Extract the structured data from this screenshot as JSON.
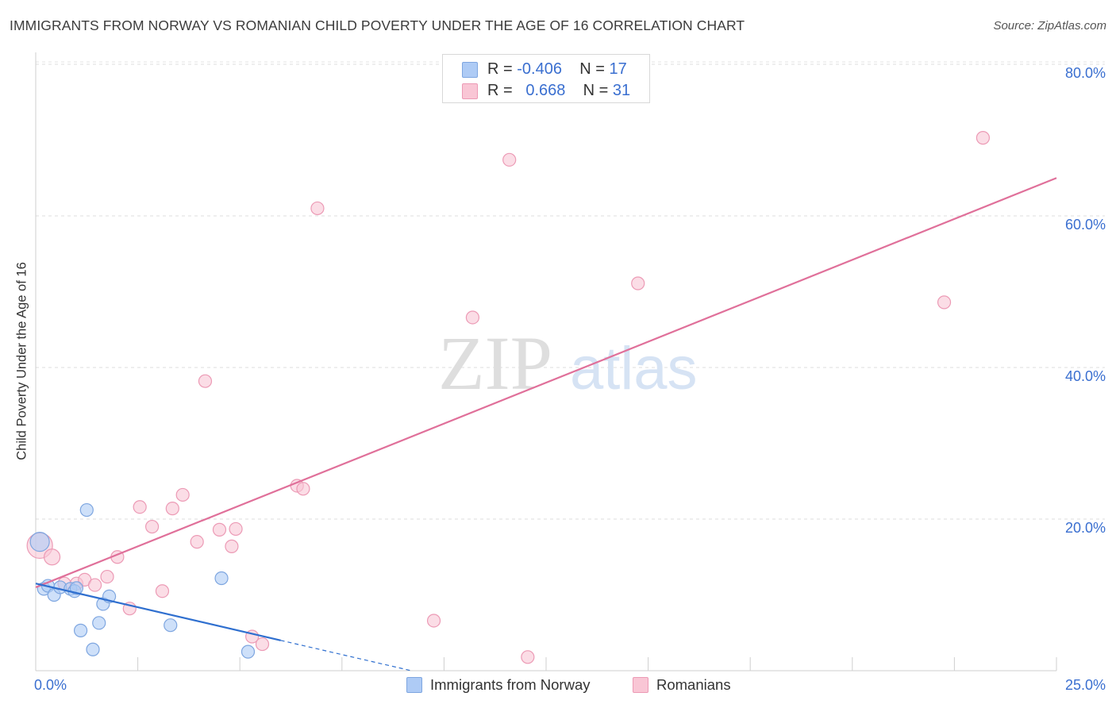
{
  "title": "IMMIGRANTS FROM NORWAY VS ROMANIAN CHILD POVERTY UNDER THE AGE OF 16 CORRELATION CHART",
  "source": "Source: ZipAtlas.com",
  "watermark": {
    "zip": "ZIP",
    "atlas": "atlas"
  },
  "legend": {
    "rows": [
      {
        "r_label": "R =",
        "r_value": "-0.406",
        "n_label": "N =",
        "n_value": "17",
        "color": "#aecbf5",
        "border": "#7ea6e0"
      },
      {
        "r_label": "R =",
        "r_value": "0.668",
        "n_label": "N =",
        "n_value": "31",
        "color": "#f9c6d5",
        "border": "#ec9ab5"
      }
    ]
  },
  "bottom_legend": [
    {
      "label": "Immigrants from Norway",
      "color": "#aecbf5",
      "border": "#7ea6e0"
    },
    {
      "label": "Romanians",
      "color": "#f9c6d5",
      "border": "#ec9ab5"
    }
  ],
  "chart_data": {
    "type": "scatter",
    "title": "IMMIGRANTS FROM NORWAY VS ROMANIAN CHILD POVERTY UNDER THE AGE OF 16 CORRELATION CHART",
    "xlabel": "",
    "ylabel": "Child Poverty Under the Age of 16",
    "xlim": [
      0,
      25
    ],
    "ylim": [
      0,
      80
    ],
    "x_tick_labels": [
      "0.0%",
      "25.0%"
    ],
    "y_ticks": [
      20,
      40,
      60,
      80
    ],
    "y_tick_labels": [
      "20.0%",
      "40.0%",
      "60.0%",
      "80.0%"
    ],
    "grid": true,
    "series": [
      {
        "name": "Immigrants from Norway",
        "color": "#7ea6e0",
        "fill": "#aecbf5",
        "line_color": "#2f6fcf",
        "trend": {
          "x0": 0,
          "y0": 11.5,
          "x1": 6.0,
          "y1": 4.0,
          "dash_to_x": 9.2
        },
        "points": [
          {
            "x": 0.1,
            "y": 17.0,
            "size": "large"
          },
          {
            "x": 0.2,
            "y": 10.8,
            "size": "normal"
          },
          {
            "x": 0.3,
            "y": 11.2,
            "size": "normal"
          },
          {
            "x": 0.45,
            "y": 10.0,
            "size": "normal"
          },
          {
            "x": 0.6,
            "y": 11.0,
            "size": "normal"
          },
          {
            "x": 0.85,
            "y": 10.8,
            "size": "normal"
          },
          {
            "x": 0.95,
            "y": 10.5,
            "size": "normal"
          },
          {
            "x": 1.1,
            "y": 5.3,
            "size": "normal"
          },
          {
            "x": 1.25,
            "y": 21.2,
            "size": "normal"
          },
          {
            "x": 1.4,
            "y": 2.8,
            "size": "normal"
          },
          {
            "x": 1.55,
            "y": 6.3,
            "size": "normal"
          },
          {
            "x": 1.65,
            "y": 8.8,
            "size": "normal"
          },
          {
            "x": 1.8,
            "y": 9.8,
            "size": "normal"
          },
          {
            "x": 3.3,
            "y": 6.0,
            "size": "normal"
          },
          {
            "x": 4.55,
            "y": 12.2,
            "size": "normal"
          },
          {
            "x": 5.2,
            "y": 2.5,
            "size": "normal"
          },
          {
            "x": 1.0,
            "y": 10.9,
            "size": "normal"
          }
        ]
      },
      {
        "name": "Romanians",
        "color": "#ec9ab5",
        "fill": "#f9c6d5",
        "line_color": "#e0709a",
        "trend": {
          "x0": 0,
          "y0": 11.0,
          "x1": 25.0,
          "y1": 65.0
        },
        "points": [
          {
            "x": 0.1,
            "y": 16.5,
            "size": "xlarge"
          },
          {
            "x": 0.4,
            "y": 15.0,
            "size": "medium"
          },
          {
            "x": 0.7,
            "y": 11.5,
            "size": "normal"
          },
          {
            "x": 1.0,
            "y": 11.5,
            "size": "normal"
          },
          {
            "x": 1.2,
            "y": 12.0,
            "size": "normal"
          },
          {
            "x": 1.45,
            "y": 11.3,
            "size": "normal"
          },
          {
            "x": 1.75,
            "y": 12.4,
            "size": "normal"
          },
          {
            "x": 2.0,
            "y": 15.0,
            "size": "normal"
          },
          {
            "x": 2.3,
            "y": 8.2,
            "size": "normal"
          },
          {
            "x": 2.55,
            "y": 21.6,
            "size": "normal"
          },
          {
            "x": 2.85,
            "y": 19.0,
            "size": "normal"
          },
          {
            "x": 3.1,
            "y": 10.5,
            "size": "normal"
          },
          {
            "x": 3.35,
            "y": 21.4,
            "size": "normal"
          },
          {
            "x": 3.6,
            "y": 23.2,
            "size": "normal"
          },
          {
            "x": 3.95,
            "y": 17.0,
            "size": "normal"
          },
          {
            "x": 4.15,
            "y": 38.2,
            "size": "normal"
          },
          {
            "x": 4.5,
            "y": 18.6,
            "size": "normal"
          },
          {
            "x": 4.8,
            "y": 16.4,
            "size": "normal"
          },
          {
            "x": 4.9,
            "y": 18.7,
            "size": "normal"
          },
          {
            "x": 5.3,
            "y": 4.5,
            "size": "normal"
          },
          {
            "x": 5.55,
            "y": 3.5,
            "size": "normal"
          },
          {
            "x": 6.4,
            "y": 24.4,
            "size": "normal"
          },
          {
            "x": 6.9,
            "y": 61.0,
            "size": "normal"
          },
          {
            "x": 6.55,
            "y": 24.0,
            "size": "normal"
          },
          {
            "x": 9.75,
            "y": 6.6,
            "size": "normal"
          },
          {
            "x": 10.7,
            "y": 46.6,
            "size": "normal"
          },
          {
            "x": 11.6,
            "y": 67.4,
            "size": "normal"
          },
          {
            "x": 12.05,
            "y": 1.8,
            "size": "normal"
          },
          {
            "x": 14.75,
            "y": 51.1,
            "size": "normal"
          },
          {
            "x": 22.25,
            "y": 48.6,
            "size": "normal"
          },
          {
            "x": 23.2,
            "y": 70.3,
            "size": "normal"
          }
        ]
      }
    ]
  }
}
